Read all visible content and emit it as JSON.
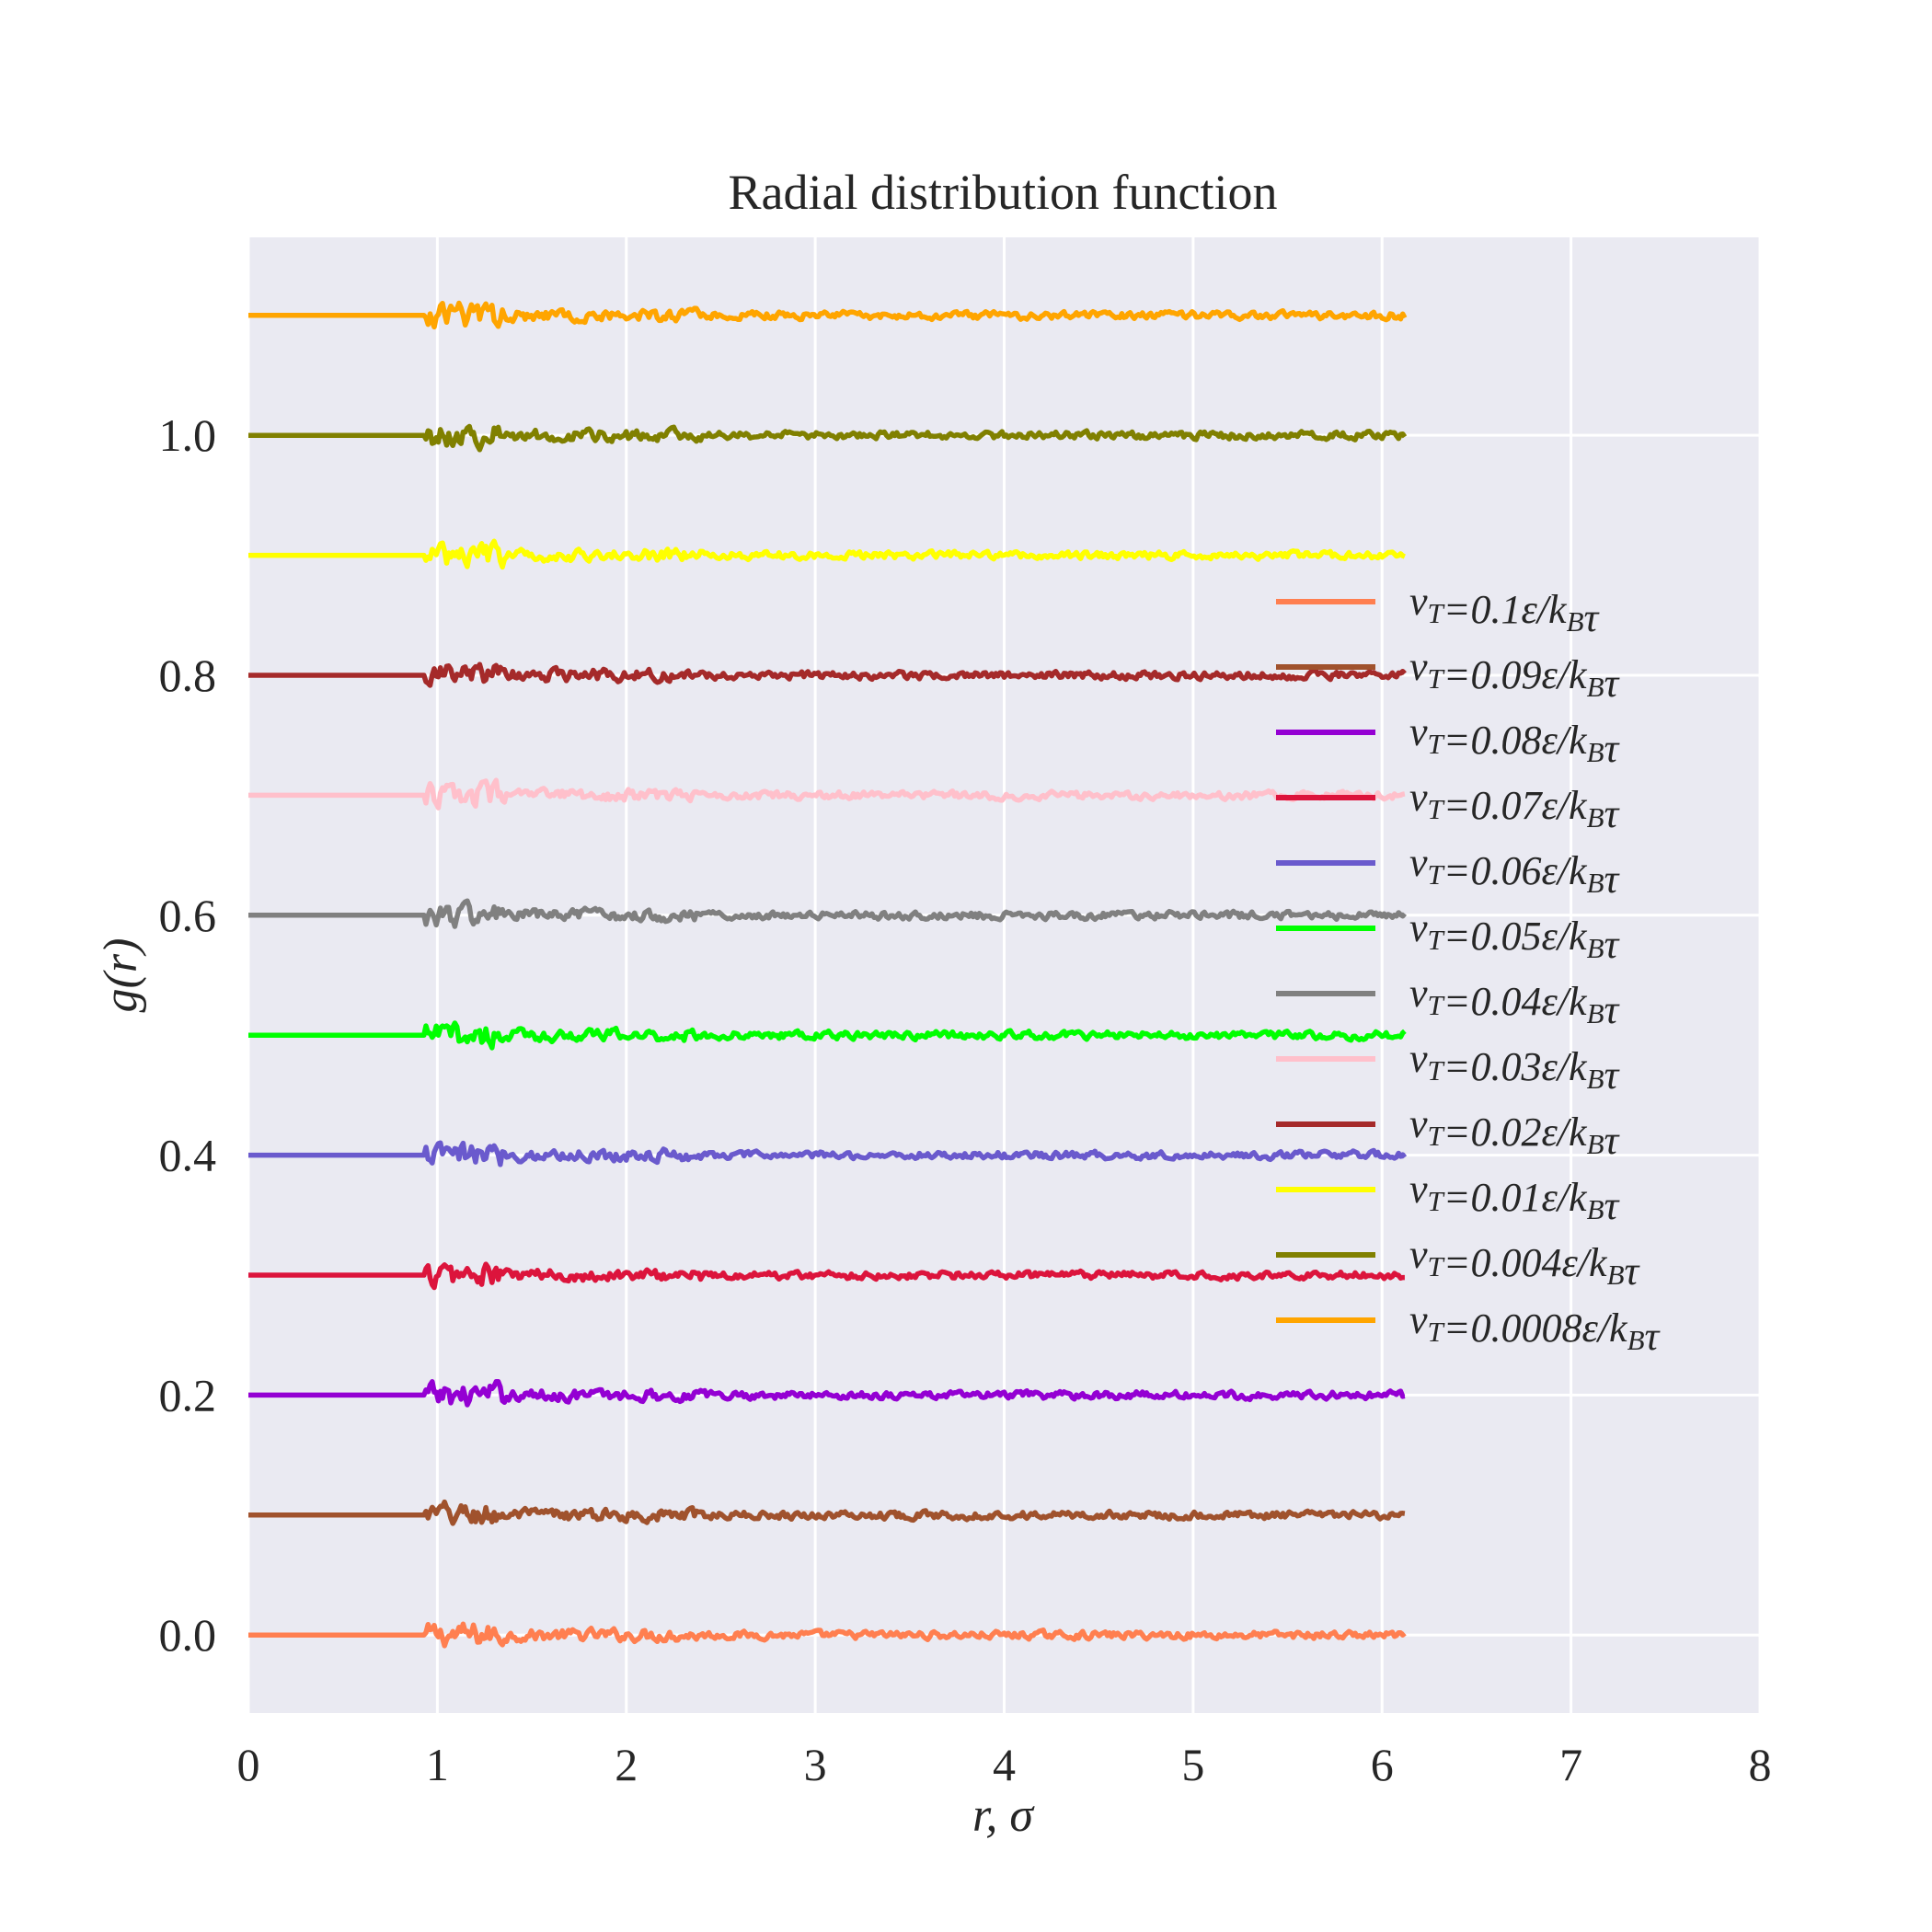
{
  "chart_data": {
    "type": "line",
    "title": "Radial distribution function",
    "xlabel": "r, σ",
    "ylabel": "g(r)",
    "xlim": [
      0,
      8
    ],
    "ylim": [
      -0.065,
      1.165
    ],
    "xticks": [
      "0",
      "1",
      "2",
      "3",
      "4",
      "5",
      "6",
      "7",
      "8"
    ],
    "yticks": [
      "0.0",
      "0.2",
      "0.4",
      "0.6",
      "0.8",
      "1.0"
    ],
    "ytick_values": [
      0.0,
      0.2,
      0.4,
      0.6,
      0.8,
      1.0
    ],
    "grid": true,
    "background_color": "#eaeaf2",
    "legend_position": "center-right",
    "x_range_data": [
      0,
      6.12
    ],
    "series": [
      {
        "name": "v_T=0.1ε/k_Bτ",
        "label_main": "v",
        "label_sub": "T",
        "label_rest": "=0.1ε/k",
        "label_sub2": "B",
        "label_end": "τ",
        "offset": 0.0,
        "color": "#ff7f50"
      },
      {
        "name": "v_T=0.09ε/k_Bτ",
        "label_main": "v",
        "label_sub": "T",
        "label_rest": "=0.09ε/k",
        "label_sub2": "B",
        "label_end": "τ",
        "offset": 0.1,
        "color": "#a0522d"
      },
      {
        "name": "v_T=0.08ε/k_Bτ",
        "label_main": "v",
        "label_sub": "T",
        "label_rest": "=0.08ε/k",
        "label_sub2": "B",
        "label_end": "τ",
        "offset": 0.2,
        "color": "#9400d3"
      },
      {
        "name": "v_T=0.07ε/k_Bτ",
        "label_main": "v",
        "label_sub": "T",
        "label_rest": "=0.07ε/k",
        "label_sub2": "B",
        "label_end": "τ",
        "offset": 0.3,
        "color": "#dc143c"
      },
      {
        "name": "v_T=0.06ε/k_Bτ",
        "label_main": "v",
        "label_sub": "T",
        "label_rest": "=0.06ε/k",
        "label_sub2": "B",
        "label_end": "τ",
        "offset": 0.4,
        "color": "#6a5acd"
      },
      {
        "name": "v_T=0.05ε/k_Bτ",
        "label_main": "v",
        "label_sub": "T",
        "label_rest": "=0.05ε/k",
        "label_sub2": "B",
        "label_end": "τ",
        "offset": 0.5,
        "color": "#00ff00"
      },
      {
        "name": "v_T=0.04ε/k_Bτ",
        "label_main": "v",
        "label_sub": "T",
        "label_rest": "=0.04ε/k",
        "label_sub2": "B",
        "label_end": "τ",
        "offset": 0.6,
        "color": "#808080"
      },
      {
        "name": "v_T=0.03ε/k_Bτ",
        "label_main": "v",
        "label_sub": "T",
        "label_rest": "=0.03ε/k",
        "label_sub2": "B",
        "label_end": "τ",
        "offset": 0.7,
        "color": "#ffc0cb"
      },
      {
        "name": "v_T=0.02ε/k_Bτ",
        "label_main": "v",
        "label_sub": "T",
        "label_rest": "=0.02ε/k",
        "label_sub2": "B",
        "label_end": "τ",
        "offset": 0.8,
        "color": "#a52a2a"
      },
      {
        "name": "v_T=0.01ε/k_Bτ",
        "label_main": "v",
        "label_sub": "T",
        "label_rest": "=0.01ε/k",
        "label_sub2": "B",
        "label_end": "τ",
        "offset": 0.9,
        "color": "#ffff00"
      },
      {
        "name": "v_T=0.004ε/k_Bτ",
        "label_main": "v",
        "label_sub": "T",
        "label_rest": "=0.004ε/k",
        "label_sub2": "B",
        "label_end": "τ",
        "offset": 1.0,
        "color": "#808000"
      },
      {
        "name": "v_T=0.0008ε/k_Bτ",
        "label_main": "v",
        "label_sub": "T",
        "label_rest": "=0.0008ε/k",
        "label_sub2": "B",
        "label_end": "τ",
        "offset": 1.1,
        "color": "#ffa500"
      }
    ]
  }
}
